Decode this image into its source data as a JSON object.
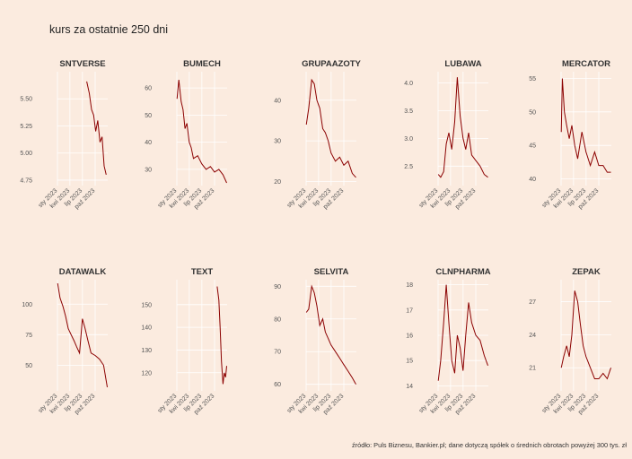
{
  "title": "kurs za ostatnie 250 dni",
  "source": "źródło: Puls Biznesu, Bankier.pl; dane dotyczą spółek o średnich obrotach powyżej 300 tys. zł",
  "colors": {
    "background": "#fbebdf",
    "grid": "#ffffff",
    "line": "#8b0000"
  },
  "chart_data": [
    {
      "type": "line",
      "title": "SNTVERSE",
      "xlim": [
        "2023-01-01",
        "2023-12-31"
      ],
      "ylim": [
        4.7,
        5.75
      ],
      "yticks": [
        4.75,
        5.0,
        5.25,
        5.5
      ],
      "ytick_labels": [
        "4.75",
        "5.00",
        "5.25",
        "5.50"
      ],
      "xtick_labels": [
        "sty 2023",
        "kwi 2023",
        "lip 2023",
        "paź 2023"
      ],
      "series": [
        {
          "x": [
            "2023-08-01",
            "2023-08-20",
            "2023-09-05",
            "2023-09-20",
            "2023-10-05",
            "2023-10-20",
            "2023-11-05",
            "2023-11-20",
            "2023-12-05",
            "2023-12-20"
          ],
          "values": [
            5.66,
            5.55,
            5.4,
            5.35,
            5.2,
            5.3,
            5.1,
            5.15,
            4.88,
            4.8
          ]
        }
      ]
    },
    {
      "type": "line",
      "title": "BUMECH",
      "xlim": [
        "2023-01-01",
        "2023-12-31"
      ],
      "ylim": [
        24,
        66
      ],
      "yticks": [
        30,
        40,
        50,
        60
      ],
      "ytick_labels": [
        "30",
        "40",
        "50",
        "60"
      ],
      "xtick_labels": [
        "sty 2023",
        "kwi 2023",
        "lip 2023",
        "paź 2023"
      ],
      "series": [
        {
          "x": [
            "2023-01-02",
            "2023-01-15",
            "2023-02-01",
            "2023-02-15",
            "2023-03-01",
            "2023-03-15",
            "2023-04-01",
            "2023-04-15",
            "2023-05-01",
            "2023-06-01",
            "2023-07-01",
            "2023-08-01",
            "2023-09-01",
            "2023-10-01",
            "2023-11-01",
            "2023-12-01",
            "2023-12-28"
          ],
          "values": [
            56,
            63,
            55,
            52,
            45,
            47,
            40,
            38,
            34,
            35,
            32,
            30,
            31,
            29,
            30,
            28,
            25
          ]
        }
      ]
    },
    {
      "type": "line",
      "title": "GRUPAAZOTY",
      "xlim": [
        "2023-01-01",
        "2023-12-31"
      ],
      "ylim": [
        19,
        47
      ],
      "yticks": [
        20,
        30,
        40
      ],
      "ytick_labels": [
        "20",
        "30",
        "40"
      ],
      "xtick_labels": [
        "sty 2023",
        "kwi 2023",
        "lip 2023",
        "paź 2023"
      ],
      "series": [
        {
          "x": [
            "2023-01-02",
            "2023-01-20",
            "2023-02-10",
            "2023-03-01",
            "2023-03-20",
            "2023-04-10",
            "2023-05-01",
            "2023-05-20",
            "2023-06-10",
            "2023-07-01",
            "2023-08-01",
            "2023-09-01",
            "2023-10-01",
            "2023-11-01",
            "2023-12-01",
            "2023-12-28"
          ],
          "values": [
            34,
            38,
            45,
            44,
            40,
            38,
            33,
            32,
            30,
            27,
            25,
            26,
            24,
            25,
            22,
            21
          ]
        }
      ]
    },
    {
      "type": "line",
      "title": "LUBAWA",
      "xlim": [
        "2023-01-01",
        "2023-12-31"
      ],
      "ylim": [
        2.15,
        4.2
      ],
      "yticks": [
        2.5,
        3.0,
        3.5,
        4.0
      ],
      "ytick_labels": [
        "2.5",
        "3.0",
        "3.5",
        "4.0"
      ],
      "xtick_labels": [
        "sty 2023",
        "kwi 2023",
        "lip 2023",
        "paź 2023"
      ],
      "series": [
        {
          "x": [
            "2023-01-02",
            "2023-01-20",
            "2023-02-10",
            "2023-03-01",
            "2023-03-20",
            "2023-04-10",
            "2023-05-01",
            "2023-05-20",
            "2023-06-10",
            "2023-07-01",
            "2023-07-20",
            "2023-08-10",
            "2023-09-01",
            "2023-10-01",
            "2023-11-01",
            "2023-12-01",
            "2023-12-28"
          ],
          "values": [
            2.35,
            2.3,
            2.4,
            2.9,
            3.1,
            2.8,
            3.3,
            4.1,
            3.4,
            3.0,
            2.8,
            3.1,
            2.7,
            2.6,
            2.5,
            2.35,
            2.3
          ]
        }
      ]
    },
    {
      "type": "line",
      "title": "MERCATOR",
      "xlim": [
        "2023-01-01",
        "2023-12-31"
      ],
      "ylim": [
        39,
        56
      ],
      "yticks": [
        40,
        45,
        50,
        55
      ],
      "ytick_labels": [
        "40",
        "45",
        "50",
        "55"
      ],
      "xtick_labels": [
        "sty 2023",
        "kwi 2023",
        "lip 2023",
        "paź 2023"
      ],
      "series": [
        {
          "x": [
            "2023-01-02",
            "2023-01-10",
            "2023-01-25",
            "2023-02-10",
            "2023-03-01",
            "2023-03-20",
            "2023-04-10",
            "2023-05-01",
            "2023-06-01",
            "2023-07-01",
            "2023-08-01",
            "2023-09-01",
            "2023-10-01",
            "2023-11-01",
            "2023-12-01",
            "2023-12-28"
          ],
          "values": [
            47,
            55,
            50,
            48,
            46,
            48,
            45,
            43,
            47,
            44,
            42,
            44,
            42,
            42,
            41,
            41
          ]
        }
      ]
    },
    {
      "type": "line",
      "title": "DATAWALK",
      "xlim": [
        "2023-01-01",
        "2023-12-31"
      ],
      "ylim": [
        29,
        120
      ],
      "yticks": [
        50,
        75,
        100
      ],
      "ytick_labels": [
        "50",
        "75",
        "100"
      ],
      "xtick_labels": [
        "sty 2023",
        "kwi 2023",
        "lip 2023",
        "paź 2023"
      ],
      "series": [
        {
          "x": [
            "2023-01-02",
            "2023-01-20",
            "2023-02-10",
            "2023-03-01",
            "2023-03-20",
            "2023-04-10",
            "2023-05-01",
            "2023-05-20",
            "2023-06-10",
            "2023-07-01",
            "2023-07-20",
            "2023-08-10",
            "2023-09-01",
            "2023-10-01",
            "2023-11-01",
            "2023-12-01",
            "2023-12-28"
          ],
          "values": [
            117,
            105,
            98,
            90,
            80,
            75,
            70,
            65,
            60,
            88,
            80,
            70,
            60,
            58,
            55,
            50,
            32
          ]
        }
      ]
    },
    {
      "type": "line",
      "title": "TEXT",
      "xlim": [
        "2023-01-01",
        "2023-12-31"
      ],
      "ylim": [
        112,
        161
      ],
      "yticks": [
        120,
        130,
        140,
        150
      ],
      "ytick_labels": [
        "120",
        "130",
        "140",
        "150"
      ],
      "xtick_labels": [
        "sty 2023",
        "kwi 2023",
        "lip 2023",
        "paź 2023"
      ],
      "series": [
        {
          "x": [
            "2023-10-20",
            "2023-11-01",
            "2023-11-10",
            "2023-11-20",
            "2023-12-01",
            "2023-12-10",
            "2023-12-20",
            "2023-12-28"
          ],
          "values": [
            158,
            152,
            140,
            125,
            115,
            120,
            118,
            123
          ]
        }
      ]
    },
    {
      "type": "line",
      "title": "SELVITA",
      "xlim": [
        "2023-01-01",
        "2023-12-31"
      ],
      "ylim": [
        58,
        92
      ],
      "yticks": [
        60,
        70,
        80,
        90
      ],
      "ytick_labels": [
        "60",
        "70",
        "80",
        "90"
      ],
      "xtick_labels": [
        "sty 2023",
        "kwi 2023",
        "lip 2023",
        "paź 2023"
      ],
      "series": [
        {
          "x": [
            "2023-01-02",
            "2023-01-20",
            "2023-02-10",
            "2023-03-01",
            "2023-03-20",
            "2023-04-10",
            "2023-05-01",
            "2023-05-20",
            "2023-06-10",
            "2023-07-01",
            "2023-08-01",
            "2023-09-01",
            "2023-10-01",
            "2023-11-01",
            "2023-12-01",
            "2023-12-28"
          ],
          "values": [
            82,
            83,
            90,
            88,
            84,
            78,
            80,
            76,
            74,
            72,
            70,
            68,
            66,
            64,
            62,
            60
          ]
        }
      ]
    },
    {
      "type": "line",
      "title": "CLNPHARMA",
      "xlim": [
        "2023-01-01",
        "2023-12-31"
      ],
      "ylim": [
        13.8,
        18.2
      ],
      "yticks": [
        14,
        15,
        16,
        17,
        18
      ],
      "ytick_labels": [
        "14",
        "15",
        "16",
        "17",
        "18"
      ],
      "xtick_labels": [
        "sty 2023",
        "kwi 2023",
        "lip 2023",
        "paź 2023"
      ],
      "series": [
        {
          "x": [
            "2023-01-02",
            "2023-01-20",
            "2023-02-10",
            "2023-03-01",
            "2023-03-20",
            "2023-04-10",
            "2023-05-01",
            "2023-05-20",
            "2023-06-10",
            "2023-07-01",
            "2023-07-20",
            "2023-08-10",
            "2023-09-01",
            "2023-10-01",
            "2023-11-01",
            "2023-12-01",
            "2023-12-28"
          ],
          "values": [
            14.2,
            15.0,
            16.5,
            18.0,
            16.5,
            15.0,
            14.5,
            16.0,
            15.5,
            14.6,
            16.0,
            17.3,
            16.5,
            16.0,
            15.8,
            15.2,
            14.8
          ]
        }
      ]
    },
    {
      "type": "line",
      "title": "ZEPAK",
      "xlim": [
        "2023-01-01",
        "2023-12-31"
      ],
      "ylim": [
        18.9,
        29
      ],
      "yticks": [
        21,
        24,
        27
      ],
      "ytick_labels": [
        "21",
        "24",
        "27"
      ],
      "xtick_labels": [
        "sty 2023",
        "kwi 2023",
        "lip 2023",
        "paź 2023"
      ],
      "series": [
        {
          "x": [
            "2023-01-02",
            "2023-01-20",
            "2023-02-10",
            "2023-03-01",
            "2023-03-20",
            "2023-04-10",
            "2023-05-01",
            "2023-05-20",
            "2023-06-10",
            "2023-07-01",
            "2023-08-01",
            "2023-09-01",
            "2023-10-01",
            "2023-11-01",
            "2023-12-01",
            "2023-12-28"
          ],
          "values": [
            21,
            22,
            23,
            22,
            24,
            28,
            27,
            25,
            23,
            22,
            21,
            20,
            20,
            20.5,
            20,
            21
          ]
        }
      ]
    }
  ]
}
